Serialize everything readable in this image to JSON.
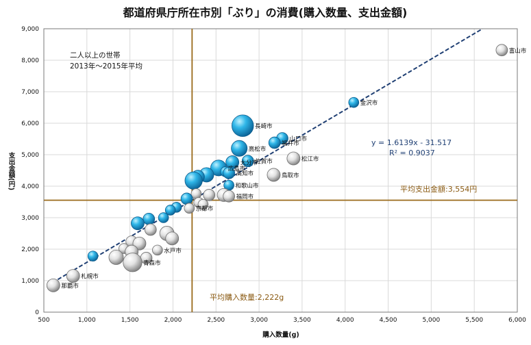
{
  "chart_data": {
    "type": "scatter",
    "title": "都道府県庁所在市別「ぶり」の消費(購入数量、支出金額)",
    "xlabel": "購入数量(g)",
    "ylabel": "支出金額(円)",
    "xlim": [
      500,
      6000
    ],
    "ylim": [
      0,
      9000
    ],
    "xticks": [
      500,
      1000,
      1500,
      2000,
      2500,
      3000,
      3500,
      4000,
      4500,
      5000,
      5500,
      6000
    ],
    "xtick_labels": [
      "500",
      "1,000",
      "1,500",
      "2,000",
      "2,500",
      "3,000",
      "3,500",
      "4,000",
      "4,500",
      "5,000",
      "5,500",
      "6,000"
    ],
    "yticks": [
      0,
      1000,
      2000,
      3000,
      4000,
      5000,
      6000,
      7000,
      8000,
      9000
    ],
    "ytick_labels": [
      "0",
      "1,000",
      "2,000",
      "3,000",
      "4,000",
      "5,000",
      "6,000",
      "7,000",
      "8,000",
      "9,000"
    ],
    "grid": true,
    "note_line1": "二人以上の世帯",
    "note_line2": "2013年～2015年平均",
    "trendline": {
      "slope": 1.6139,
      "intercept": -31.517,
      "equation_text": "y = 1.6139x - 31.517",
      "r2_text": "R² = 0.9037"
    },
    "avg_quantity": 2222,
    "avg_quantity_label": "平均購入数量:2,222g",
    "avg_spending": 3554,
    "avg_spending_label": "平均支出金額:3,554円",
    "points": [
      {
        "name": "富山市",
        "x": 5820,
        "y": 8320,
        "s": 2.5,
        "c": "w"
      },
      {
        "name": "金沢市",
        "x": 4100,
        "y": 6660,
        "s": 2,
        "c": "b"
      },
      {
        "name": "長崎市",
        "x": 2810,
        "y": 5920,
        "s": 6,
        "c": "b"
      },
      {
        "name": "山口市",
        "x": 3270,
        "y": 5520,
        "s": 2.5,
        "c": "b"
      },
      {
        "name": "福井市",
        "x": 3180,
        "y": 5380,
        "s": 2.5,
        "c": "b"
      },
      {
        "name": "高松市",
        "x": 2770,
        "y": 5200,
        "s": 4,
        "c": "b"
      },
      {
        "name": "松江市",
        "x": 3400,
        "y": 4880,
        "s": 3,
        "c": "w"
      },
      {
        "name": "佐賀市",
        "x": 2870,
        "y": 4800,
        "s": 2.5,
        "c": "b"
      },
      {
        "name": "大分市",
        "x": 2690,
        "y": 4760,
        "s": 3,
        "c": "b"
      },
      {
        "name": "広島市",
        "x": 2530,
        "y": 4580,
        "s": 4,
        "c": "b"
      },
      {
        "name": "",
        "x": 2610,
        "y": 4460,
        "s": 2,
        "c": "b"
      },
      {
        "name": "高知市",
        "x": 2650,
        "y": 4420,
        "s": 2.5,
        "c": "b"
      },
      {
        "name": "鳥取市",
        "x": 3170,
        "y": 4360,
        "s": 3,
        "c": "w"
      },
      {
        "name": "",
        "x": 2390,
        "y": 4360,
        "s": 3.5,
        "c": "b"
      },
      {
        "name": "",
        "x": 2290,
        "y": 4300,
        "s": 3,
        "c": "b"
      },
      {
        "name": "",
        "x": 2240,
        "y": 4180,
        "s": 4.5,
        "c": "b"
      },
      {
        "name": "和歌山市",
        "x": 2650,
        "y": 4030,
        "s": 2,
        "c": "b"
      },
      {
        "name": "",
        "x": 2270,
        "y": 3760,
        "s": 2,
        "c": "w"
      },
      {
        "name": "",
        "x": 2420,
        "y": 3720,
        "s": 2.5,
        "c": "w"
      },
      {
        "name": "",
        "x": 2590,
        "y": 3720,
        "s": 3,
        "c": "w"
      },
      {
        "name": "福岡市",
        "x": 2650,
        "y": 3680,
        "s": 2.5,
        "c": "w"
      },
      {
        "name": "",
        "x": 2160,
        "y": 3600,
        "s": 2.5,
        "c": "b"
      },
      {
        "name": "",
        "x": 2300,
        "y": 3480,
        "s": 2,
        "c": "w"
      },
      {
        "name": "",
        "x": 2350,
        "y": 3420,
        "s": 2,
        "c": "w"
      },
      {
        "name": "京都市",
        "x": 2190,
        "y": 3300,
        "s": 2,
        "c": "w"
      },
      {
        "name": "",
        "x": 2040,
        "y": 3330,
        "s": 2,
        "c": "b"
      },
      {
        "name": "",
        "x": 1970,
        "y": 3240,
        "s": 2,
        "c": "b"
      },
      {
        "name": "",
        "x": 1890,
        "y": 3000,
        "s": 2,
        "c": "b"
      },
      {
        "name": "",
        "x": 1720,
        "y": 2960,
        "s": 2.5,
        "c": "b"
      },
      {
        "name": "",
        "x": 1590,
        "y": 2820,
        "s": 3,
        "c": "b"
      },
      {
        "name": "",
        "x": 1740,
        "y": 2620,
        "s": 2.5,
        "c": "w"
      },
      {
        "name": "",
        "x": 1930,
        "y": 2500,
        "s": 3.5,
        "c": "w"
      },
      {
        "name": "",
        "x": 1990,
        "y": 2340,
        "s": 3,
        "c": "w"
      },
      {
        "name": "",
        "x": 1520,
        "y": 2240,
        "s": 2.5,
        "c": "w"
      },
      {
        "name": "",
        "x": 1610,
        "y": 2180,
        "s": 3,
        "c": "w"
      },
      {
        "name": "",
        "x": 1430,
        "y": 2020,
        "s": 2,
        "c": "w"
      },
      {
        "name": "",
        "x": 1520,
        "y": 1920,
        "s": 3,
        "c": "w"
      },
      {
        "name": "水戸市",
        "x": 1820,
        "y": 1970,
        "s": 2,
        "c": "w"
      },
      {
        "name": "",
        "x": 1070,
        "y": 1780,
        "s": 2,
        "c": "b"
      },
      {
        "name": "",
        "x": 1340,
        "y": 1740,
        "s": 3.5,
        "c": "w"
      },
      {
        "name": "",
        "x": 1690,
        "y": 1720,
        "s": 2.5,
        "c": "w"
      },
      {
        "name": "青森市",
        "x": 1530,
        "y": 1580,
        "s": 5,
        "c": "w"
      },
      {
        "name": "札幌市",
        "x": 840,
        "y": 1150,
        "s": 3,
        "c": "w"
      },
      {
        "name": "那覇市",
        "x": 610,
        "y": 850,
        "s": 3,
        "c": "w"
      }
    ]
  }
}
